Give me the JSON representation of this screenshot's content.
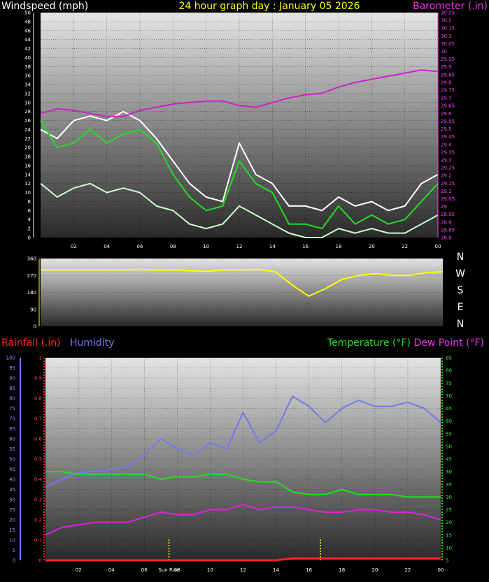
{
  "header": {
    "title": "24 hour graph day : January 05 2026",
    "left_label": "Windspeed (mph)",
    "right_label": "Barometer (.in)"
  },
  "colors": {
    "wind_avg": "#22dd22",
    "wind_gust": "#ffffff",
    "wind_low": "#ccffcc",
    "barometer": "#cc22cc",
    "direction": "#ffff00",
    "rain": "#ff2222",
    "humidity": "#7777ee",
    "temperature": "#22dd22",
    "dewpoint": "#dd22dd",
    "sun": "#ffff00"
  },
  "compass": [
    "N",
    "W",
    "S",
    "E",
    "N"
  ],
  "x_ticks": [
    "02",
    "04",
    "06",
    "08",
    "10",
    "12",
    "14",
    "16",
    "18",
    "20",
    "22",
    "00"
  ],
  "sunrise_label": "Sun Rise",
  "chart_data": [
    {
      "type": "line",
      "panel": "wind",
      "ylim": [
        0,
        50
      ],
      "y_ticks": [
        "0",
        "2",
        "4",
        "6",
        "8",
        "10",
        "12",
        "14",
        "16",
        "18",
        "20",
        "22",
        "24",
        "26",
        "28",
        "30",
        "32",
        "34",
        "36",
        "38",
        "40",
        "42",
        "44",
        "46",
        "48",
        "50"
      ],
      "y2lim": [
        28.8,
        30.25
      ],
      "y2_ticks": [
        "28.8",
        "28.85",
        "28.9",
        "28.95",
        "29",
        "29.05",
        "29.1",
        "29.15",
        "29.2",
        "29.25",
        "29.3",
        "29.35",
        "29.4",
        "29.45",
        "29.5",
        "29.55",
        "29.6",
        "29.65",
        "29.7",
        "29.75",
        "29.8",
        "29.85",
        "29.9",
        "29.95",
        "30",
        "30.05",
        "30.1",
        "30.15",
        "30.2",
        "30.25"
      ],
      "x": [
        0,
        1,
        2,
        3,
        4,
        5,
        6,
        7,
        8,
        9,
        10,
        11,
        12,
        13,
        14,
        15,
        16,
        17,
        18,
        19,
        20,
        21,
        22,
        23,
        24
      ],
      "series": [
        {
          "key": "gust",
          "values": [
            24,
            22,
            26,
            27,
            26,
            28,
            26,
            22,
            17,
            12,
            9,
            8,
            21,
            14,
            12,
            7,
            7,
            6,
            9,
            7,
            8,
            6,
            7,
            12,
            14
          ]
        },
        {
          "key": "avg",
          "values": [
            26,
            20,
            21,
            24,
            21,
            23,
            24,
            21,
            14,
            9,
            6,
            7,
            17,
            12,
            10,
            3,
            3,
            2,
            7,
            3,
            5,
            3,
            4,
            8,
            12
          ]
        },
        {
          "key": "low",
          "values": [
            12,
            9,
            11,
            12,
            10,
            11,
            10,
            7,
            6,
            3,
            2,
            3,
            7,
            5,
            3,
            1,
            0,
            0,
            2,
            1,
            2,
            1,
            1,
            3,
            5
          ]
        },
        {
          "key": "barometer",
          "values": [
            29.6,
            29.63,
            29.62,
            29.6,
            29.58,
            29.58,
            29.62,
            29.64,
            29.66,
            29.67,
            29.68,
            29.68,
            29.65,
            29.64,
            29.67,
            29.7,
            29.72,
            29.73,
            29.77,
            29.8,
            29.82,
            29.84,
            29.86,
            29.88,
            29.87
          ]
        }
      ]
    },
    {
      "type": "line",
      "panel": "direction",
      "ylim": [
        0,
        360
      ],
      "y_ticks": [
        "0",
        "90",
        "180",
        "270",
        "360"
      ],
      "x": [
        0,
        1,
        2,
        3,
        4,
        5,
        6,
        7,
        8,
        9,
        10,
        11,
        12,
        13,
        14,
        15,
        16,
        17,
        18,
        19,
        20,
        21,
        22,
        23,
        24
      ],
      "series": [
        {
          "key": "direction",
          "values": [
            300,
            300,
            300,
            300,
            300,
            300,
            302,
            298,
            300,
            295,
            292,
            300,
            300,
            302,
            290,
            220,
            160,
            200,
            250,
            270,
            280,
            270,
            270,
            285,
            290
          ]
        }
      ]
    },
    {
      "type": "line",
      "panel": "rain_hum_temp",
      "left_label": "Rainfall (.in)",
      "middle_label": "Humidity",
      "right_label": "Temperature (°F)",
      "right_label2": "Dew Point (°F)",
      "humidity_ylim": [
        0,
        100
      ],
      "humidity_ticks": [
        "0",
        "5",
        "10",
        "15",
        "20",
        "25",
        "30",
        "35",
        "40",
        "45",
        "50",
        "55",
        "60",
        "65",
        "70",
        "75",
        "80",
        "85",
        "90",
        "95",
        "100"
      ],
      "rain_ylim": [
        0,
        1.0
      ],
      "rain_ticks": [
        "0",
        "0.1",
        "0.2",
        "0.3",
        "0.4",
        "0.5",
        "0.6",
        "0.7",
        "0.8",
        "0.9",
        "1"
      ],
      "temp_ylim": [
        5,
        85
      ],
      "temp_ticks": [
        "5",
        "10",
        "15",
        "20",
        "25",
        "30",
        "35",
        "40",
        "45",
        "50",
        "55",
        "60",
        "65",
        "70",
        "75",
        "80",
        "85"
      ],
      "x": [
        0,
        1,
        2,
        3,
        4,
        5,
        6,
        7,
        8,
        9,
        10,
        11,
        12,
        13,
        14,
        15,
        16,
        17,
        18,
        19,
        20,
        21,
        22,
        23,
        24
      ],
      "series": [
        {
          "key": "humidity",
          "values": [
            36,
            40,
            43,
            44,
            45,
            46,
            52,
            60,
            55,
            52,
            58,
            55,
            73,
            58,
            64,
            81,
            76,
            68,
            75,
            79,
            76,
            76,
            78,
            75,
            68
          ]
        },
        {
          "key": "temperature",
          "values": [
            40,
            40,
            39,
            39,
            39,
            39,
            39,
            37,
            38,
            38,
            39,
            39,
            37,
            36,
            36,
            32,
            31,
            31,
            33,
            31,
            31,
            31,
            30,
            30,
            30
          ]
        },
        {
          "key": "dewpoint",
          "values": [
            15,
            18,
            19,
            20,
            20,
            20,
            22,
            24,
            23,
            23,
            25,
            25,
            27,
            25,
            26,
            26,
            25,
            24,
            24,
            25,
            25,
            24,
            24,
            23,
            21
          ]
        },
        {
          "key": "rain",
          "values": [
            0,
            0,
            0,
            0,
            0,
            0,
            0,
            0,
            0,
            0,
            0,
            0,
            0,
            0,
            0,
            0.01,
            0.01,
            0.01,
            0.01,
            0.01,
            0.01,
            0.01,
            0.01,
            0.01,
            0.01
          ]
        }
      ],
      "sun_markers_x": [
        7.5,
        16.7
      ]
    }
  ]
}
